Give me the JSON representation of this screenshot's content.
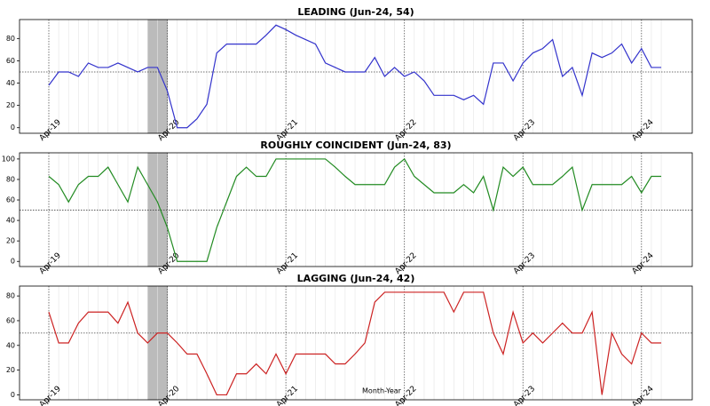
{
  "chart_data": [
    {
      "type": "line",
      "title": "LEADING (Jun-24, 54)",
      "categories": [
        "Apr-19",
        null,
        null,
        null,
        null,
        null,
        null,
        null,
        null,
        null,
        null,
        null,
        "Apr-20",
        null,
        null,
        null,
        null,
        null,
        null,
        null,
        null,
        null,
        null,
        null,
        "Apr-21",
        null,
        null,
        null,
        null,
        null,
        null,
        null,
        null,
        null,
        null,
        null,
        "Apr-22",
        null,
        null,
        null,
        null,
        null,
        null,
        null,
        null,
        null,
        null,
        null,
        "Apr-23",
        null,
        null,
        null,
        null,
        null,
        null,
        null,
        null,
        null,
        null,
        null,
        "Apr-24",
        null,
        null
      ],
      "values": [
        38,
        50,
        50,
        46,
        58,
        54,
        54,
        58,
        54,
        50,
        54,
        54,
        33,
        0,
        0,
        8,
        21,
        67,
        75,
        75,
        75,
        75,
        83,
        92,
        88,
        83,
        79,
        75,
        58,
        54,
        50,
        50,
        50,
        63,
        46,
        54,
        46,
        50,
        42,
        29,
        29,
        29,
        25,
        29,
        21,
        58,
        58,
        42,
        58,
        67,
        71,
        79,
        46,
        54,
        29,
        67,
        63,
        67,
        75,
        58,
        71,
        54,
        54
      ],
      "color": "#3333cc",
      "ylim": [
        -5,
        97
      ],
      "yticks": [
        0,
        20,
        40,
        60,
        80
      ],
      "hline": 50,
      "shade": [
        10,
        12
      ],
      "grid": true
    },
    {
      "type": "line",
      "title": "ROUGHLY COINCIDENT (Jun-24, 83)",
      "categories": [
        "Apr-19",
        null,
        null,
        null,
        null,
        null,
        null,
        null,
        null,
        null,
        null,
        null,
        "Apr-20",
        null,
        null,
        null,
        null,
        null,
        null,
        null,
        null,
        null,
        null,
        null,
        "Apr-21",
        null,
        null,
        null,
        null,
        null,
        null,
        null,
        null,
        null,
        null,
        null,
        "Apr-22",
        null,
        null,
        null,
        null,
        null,
        null,
        null,
        null,
        null,
        null,
        null,
        "Apr-23",
        null,
        null,
        null,
        null,
        null,
        null,
        null,
        null,
        null,
        null,
        null,
        "Apr-24",
        null,
        null
      ],
      "values": [
        83,
        75,
        58,
        75,
        83,
        83,
        92,
        75,
        58,
        92,
        75,
        58,
        33,
        0,
        0,
        0,
        0,
        33,
        58,
        83,
        92,
        83,
        83,
        100,
        100,
        100,
        100,
        100,
        100,
        92,
        83,
        75,
        75,
        75,
        75,
        92,
        100,
        83,
        75,
        67,
        67,
        67,
        75,
        67,
        83,
        50,
        92,
        83,
        92,
        75,
        75,
        75,
        83,
        92,
        50,
        75,
        75,
        75,
        75,
        83,
        67,
        83,
        83
      ],
      "color": "#228b22",
      "ylim": [
        -5,
        106
      ],
      "yticks": [
        0,
        20,
        40,
        60,
        80,
        100
      ],
      "hline": 50,
      "shade": [
        10,
        12
      ],
      "grid": true
    },
    {
      "type": "line",
      "title": "LAGGING (Jun-24, 42)",
      "xlabel": "Month-Year",
      "categories": [
        "Apr-19",
        null,
        null,
        null,
        null,
        null,
        null,
        null,
        null,
        null,
        null,
        null,
        "Apr-20",
        null,
        null,
        null,
        null,
        null,
        null,
        null,
        null,
        null,
        null,
        null,
        "Apr-21",
        null,
        null,
        null,
        null,
        null,
        null,
        null,
        null,
        null,
        null,
        null,
        "Apr-22",
        null,
        null,
        null,
        null,
        null,
        null,
        null,
        null,
        null,
        null,
        null,
        "Apr-23",
        null,
        null,
        null,
        null,
        null,
        null,
        null,
        null,
        null,
        null,
        null,
        "Apr-24",
        null,
        null
      ],
      "values": [
        67,
        42,
        42,
        58,
        67,
        67,
        67,
        58,
        75,
        50,
        42,
        50,
        50,
        42,
        33,
        33,
        17,
        0,
        0,
        17,
        17,
        25,
        17,
        33,
        17,
        33,
        33,
        33,
        33,
        25,
        25,
        33,
        42,
        75,
        83,
        83,
        83,
        83,
        83,
        83,
        83,
        67,
        83,
        83,
        83,
        50,
        33,
        67,
        42,
        50,
        42,
        50,
        58,
        50,
        50,
        67,
        0,
        50,
        33,
        25,
        50,
        42,
        42
      ],
      "color": "#cc2222",
      "ylim": [
        -4,
        88
      ],
      "yticks": [
        0,
        20,
        40,
        60,
        80
      ],
      "hline": 50,
      "shade": [
        10,
        12
      ],
      "grid": true
    }
  ]
}
